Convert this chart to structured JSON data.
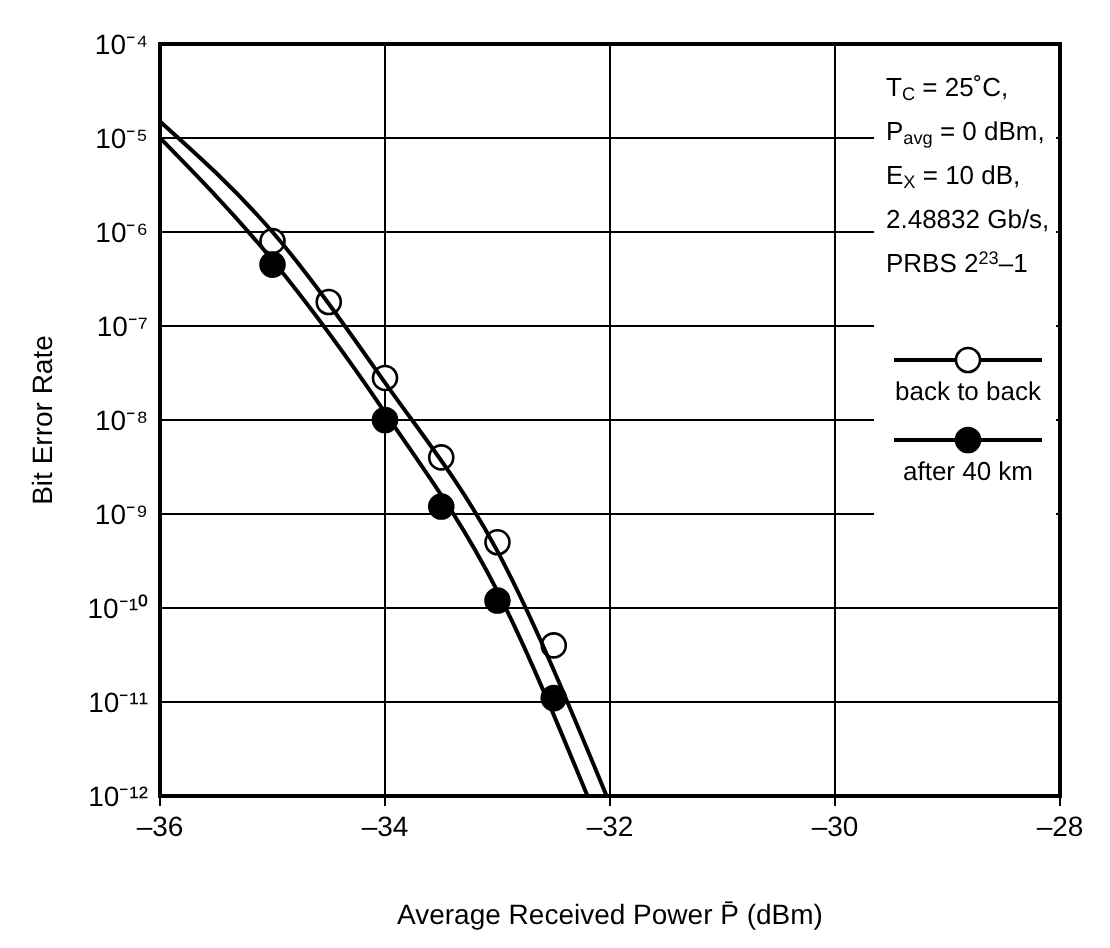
{
  "chart_data": {
    "type": "scatter",
    "xlabel": "Average Received Power  P̄ (dBm)",
    "ylabel": "Bit Error Rate",
    "xlim": [
      -36,
      -28
    ],
    "xticks": [
      {
        "value": -36,
        "label": "–36"
      },
      {
        "value": -34,
        "label": "–34"
      },
      {
        "value": -32,
        "label": "–32"
      },
      {
        "value": -30,
        "label": "–30"
      },
      {
        "value": -28,
        "label": "–28"
      }
    ],
    "ylim": [
      1e-12,
      0.0001
    ],
    "log": true,
    "yticks": [
      {
        "value": 1e-12,
        "label": "10⁻¹²"
      },
      {
        "value": 1e-11,
        "label": "10⁻¹¹"
      },
      {
        "value": 1e-10,
        "label": "10⁻¹⁰"
      },
      {
        "value": 1e-09,
        "label": "10⁻⁹"
      },
      {
        "value": 1e-08,
        "label": "10⁻⁸"
      },
      {
        "value": 1e-07,
        "label": "10⁻⁷"
      },
      {
        "value": 1e-06,
        "label": "10⁻⁶"
      },
      {
        "value": 1e-05,
        "label": "10⁻⁵"
      },
      {
        "value": 0.0001,
        "label": "10⁻⁴"
      }
    ],
    "grid": true,
    "legend": "top right",
    "annotations": [
      "T$_{C}$ = 25˚C,",
      "P$_{avg}$ = 0 dBm,",
      "E$_{X}$ = 10 dB,",
      "2.48832 Gb/s,",
      "PRBS 2$^{23}$–1"
    ],
    "series": [
      {
        "name": "back to back",
        "color": "#ffffff",
        "marker": "circle",
        "x": [
          -35,
          -34.5,
          -34,
          -33.5,
          -33,
          -32.5
        ],
        "values": [
          8e-07,
          1.8e-07,
          2.8e-08,
          4e-09,
          5e-10,
          4e-11
        ]
      },
      {
        "name": "after 40 km",
        "color": "#000000",
        "marker": "circle",
        "x": [
          -35,
          -34,
          -33.5,
          -33,
          -32.5
        ],
        "values": [
          4.5e-07,
          1e-08,
          1.2e-09,
          1.2e-10,
          1.1e-11
        ]
      },
      {
        "type": "line",
        "color": "#000000",
        "x": [
          -36,
          -35,
          -34,
          -33,
          -32.03
        ],
        "values": [
          1.5e-05,
          1e-06,
          2.5e-08,
          4e-10,
          1e-12
        ]
      },
      {
        "type": "line",
        "color": "#000000",
        "x": [
          -36,
          -35,
          -34,
          -33,
          -32.2
        ],
        "values": [
          1e-05,
          5e-07,
          1.2e-08,
          1.5e-10,
          1e-12
        ]
      }
    ]
  }
}
